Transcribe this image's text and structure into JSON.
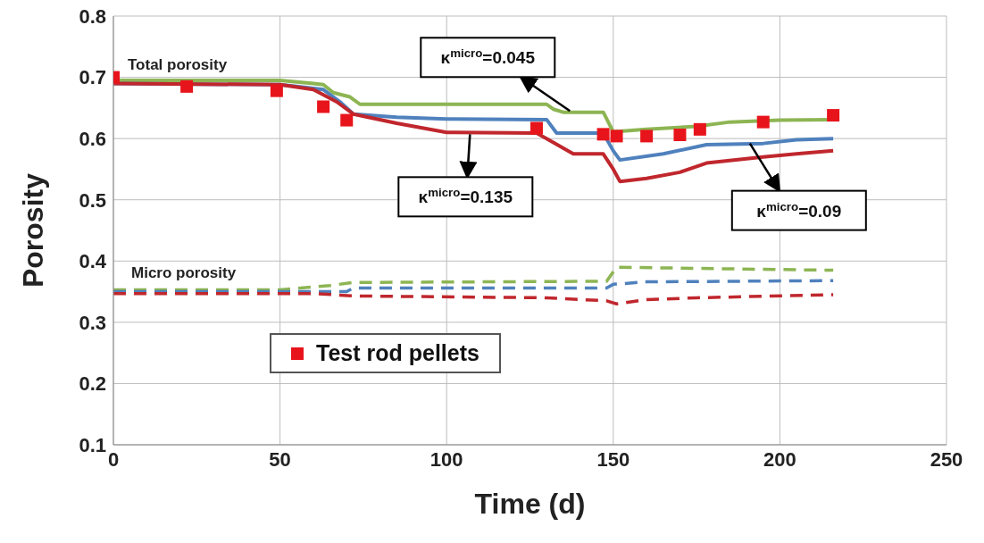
{
  "chart_data": {
    "type": "line",
    "xlabel": "Time (d)",
    "ylabel": "Porosity",
    "xlim": [
      0,
      250
    ],
    "xticks": [
      0,
      50,
      100,
      150,
      200,
      250
    ],
    "ylim": [
      0.1,
      0.8
    ],
    "yticks": [
      0.1,
      0.2,
      0.3,
      0.4,
      0.5,
      0.6,
      0.7,
      0.8
    ],
    "grid": true,
    "legend": "bottom left",
    "marker": "none",
    "series": [
      {
        "color": "#8db553",
        "line_style": "solid",
        "x": [
          0,
          50,
          60,
          63,
          66,
          71,
          74,
          130,
          132,
          135,
          147,
          150,
          152,
          160,
          175,
          185,
          200,
          216
        ],
        "values": [
          0.695,
          0.695,
          0.69,
          0.688,
          0.675,
          0.668,
          0.656,
          0.656,
          0.648,
          0.643,
          0.643,
          0.611,
          0.612,
          0.615,
          0.62,
          0.627,
          0.63,
          0.631
        ]
      },
      {
        "color": "#4f81bd",
        "line_style": "solid",
        "x": [
          0,
          50,
          55,
          63,
          68,
          72,
          85,
          100,
          130,
          133,
          147,
          150,
          152,
          165,
          178,
          195,
          205,
          216
        ],
        "values": [
          0.69,
          0.688,
          0.685,
          0.68,
          0.66,
          0.64,
          0.635,
          0.632,
          0.631,
          0.609,
          0.609,
          0.58,
          0.565,
          0.575,
          0.59,
          0.592,
          0.598,
          0.6
        ]
      },
      {
        "color": "#c0272d",
        "line_style": "solid",
        "x": [
          0,
          50,
          60,
          67,
          72,
          85,
          100,
          127,
          130,
          138,
          147,
          150,
          152,
          160,
          170,
          178,
          195,
          205,
          216
        ],
        "values": [
          0.69,
          0.688,
          0.68,
          0.66,
          0.64,
          0.625,
          0.61,
          0.609,
          0.6,
          0.575,
          0.575,
          0.55,
          0.53,
          0.535,
          0.545,
          0.56,
          0.57,
          0.575,
          0.58
        ]
      },
      {
        "color": "#8db553",
        "line_style": "dashed",
        "x": [
          0,
          50,
          65,
          72,
          148,
          151,
          175,
          216
        ],
        "values": [
          0.353,
          0.353,
          0.36,
          0.365,
          0.367,
          0.39,
          0.388,
          0.385
        ]
      },
      {
        "color": "#4f81bd",
        "line_style": "dashed",
        "x": [
          0,
          70,
          72,
          148,
          150,
          160,
          216
        ],
        "values": [
          0.35,
          0.35,
          0.356,
          0.356,
          0.362,
          0.366,
          0.368
        ]
      },
      {
        "color": "#c0272d",
        "line_style": "dashed",
        "x": [
          0,
          60,
          72,
          130,
          148,
          151,
          160,
          175,
          216
        ],
        "values": [
          0.347,
          0.347,
          0.343,
          0.34,
          0.335,
          0.33,
          0.337,
          0.34,
          0.345
        ]
      },
      {
        "type": "scatter",
        "name": "Test rod pellets",
        "color": "#e8141c",
        "marker": "square",
        "x": [
          0,
          22,
          49,
          63,
          70,
          127,
          147,
          151,
          160,
          170,
          176,
          195,
          216
        ],
        "values": [
          0.7,
          0.685,
          0.678,
          0.652,
          0.63,
          0.617,
          0.607,
          0.604,
          0.604,
          0.606,
          0.615,
          0.627,
          0.638
        ]
      }
    ],
    "annotations": [
      "Total porosity",
      "Micro porosity",
      {
        "text": "κ$^{micro}$=0.045",
        "x": 137,
        "y": 0.645
      },
      {
        "text": "κ$^{micro}$=0.135",
        "x": 107,
        "y": 0.607
      },
      {
        "text": "κ$^{micro}$=0.09",
        "x": 191,
        "y": 0.592
      }
    ]
  }
}
